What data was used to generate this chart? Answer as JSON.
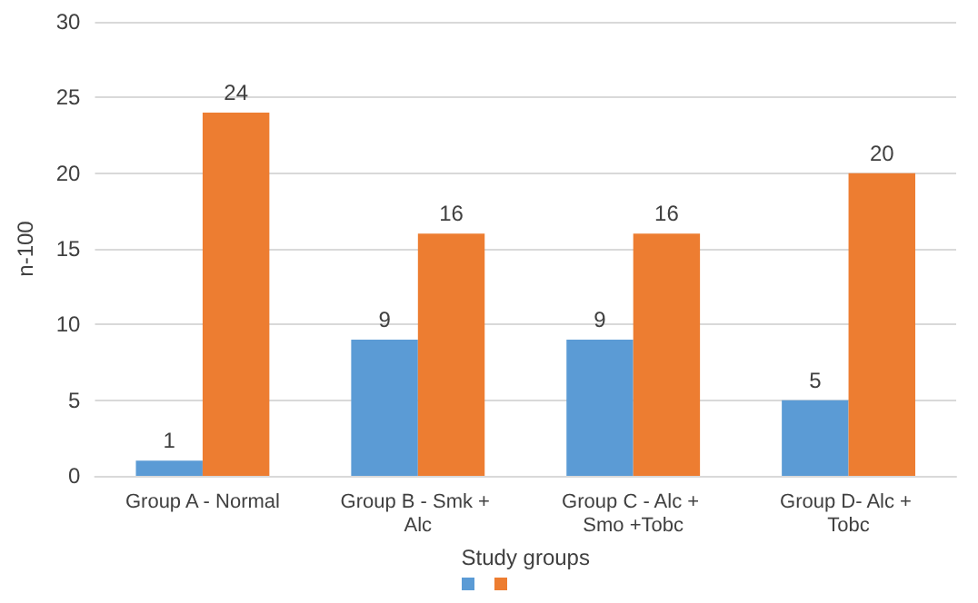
{
  "chart_data": {
    "type": "bar",
    "xlabel": "Study groups",
    "ylabel": "n-100",
    "categories": [
      "Group A - Normal",
      "Group B - Smk + Alc",
      "Group C - Alc + Smo +Tobc",
      "Group D- Alc + Tobc"
    ],
    "series": [
      {
        "color": "#5b9bd5",
        "values": [
          1,
          9,
          9,
          5
        ]
      },
      {
        "color": "#ed7d31",
        "values": [
          24,
          16,
          16,
          20
        ]
      }
    ],
    "ylim": [
      0,
      30
    ],
    "yticks": [
      0,
      5,
      10,
      15,
      20,
      25,
      30
    ],
    "grid": "y",
    "data_labels": true
  }
}
